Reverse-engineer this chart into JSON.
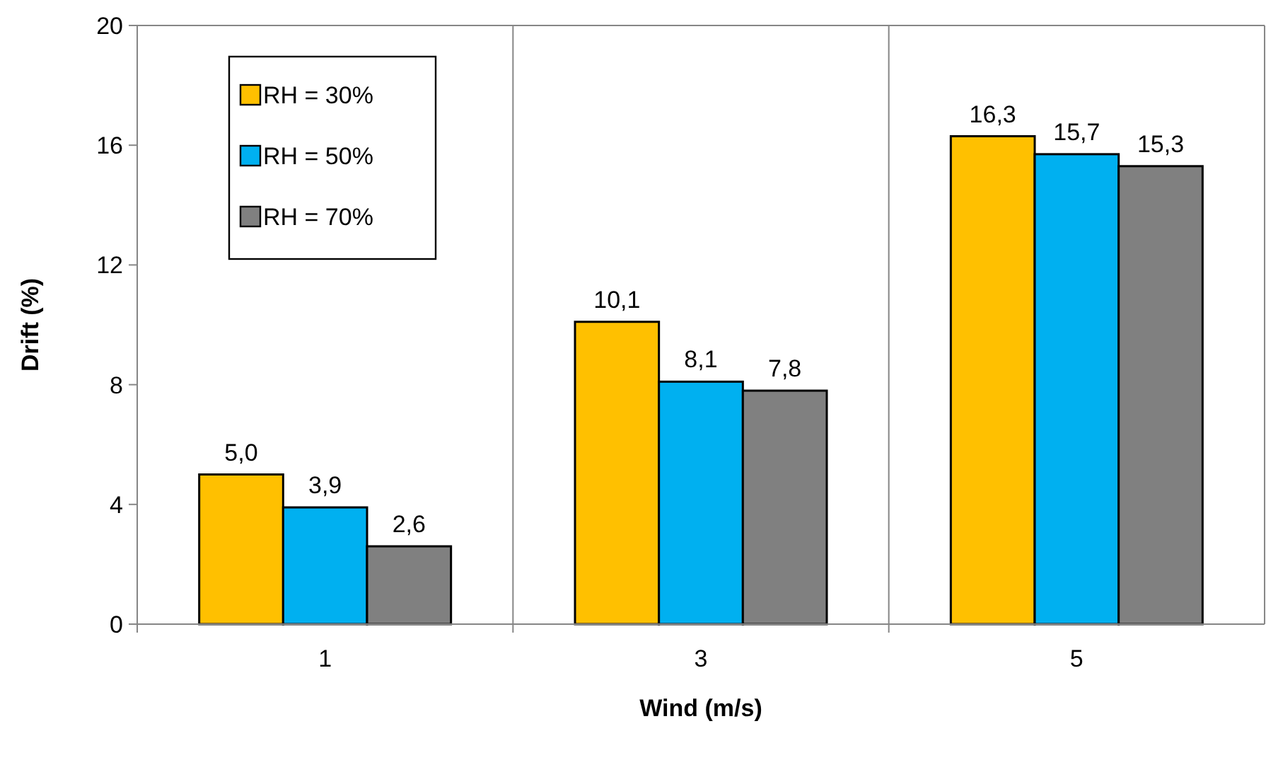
{
  "chart_data": {
    "type": "bar",
    "xlabel": "Wind (m/s)",
    "ylabel": "Drift (%)",
    "categories": [
      "1",
      "3",
      "5"
    ],
    "series": [
      {
        "name": "RH = 30%",
        "color": "#ffc000",
        "values": [
          5.0,
          10.1,
          16.3
        ],
        "value_labels": [
          "5,0",
          "10,1",
          "16,3"
        ]
      },
      {
        "name": "RH = 50%",
        "color": "#00b0f0",
        "values": [
          3.9,
          8.1,
          15.7
        ],
        "value_labels": [
          "3,9",
          "8,1",
          "15,7"
        ]
      },
      {
        "name": "RH = 70%",
        "color": "#808080",
        "values": [
          2.6,
          7.8,
          15.3
        ],
        "value_labels": [
          "2,6",
          "7,8",
          "15,3"
        ]
      }
    ],
    "ylim": [
      0,
      20
    ],
    "yticks": [
      0,
      4,
      8,
      12,
      16,
      20
    ],
    "grid": "x",
    "legend": "top left"
  }
}
